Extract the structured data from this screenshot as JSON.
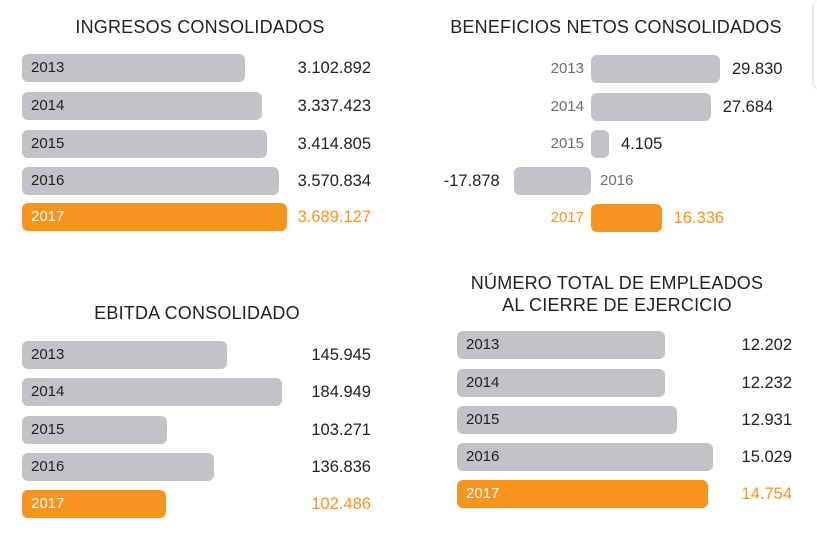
{
  "colors": {
    "bar": "#c2c3c6",
    "highlight": "#f7941d",
    "text": "#231f20"
  },
  "chart_data": [
    {
      "type": "bar",
      "orientation": "horizontal",
      "title": "INGRESOS CONSOLIDADOS",
      "categories": [
        "2013",
        "2014",
        "2015",
        "2016",
        "2017"
      ],
      "values": [
        3102892,
        3337423,
        3414805,
        3570834,
        3689127
      ],
      "labels": [
        "3.102.892",
        "3.337.423",
        "3.414.805",
        "3.570.834",
        "3.689.127"
      ],
      "highlight": "2017"
    },
    {
      "type": "bar",
      "orientation": "horizontal",
      "title": "BENEFICIOS NETOS CONSOLIDADOS",
      "categories": [
        "2013",
        "2014",
        "2015",
        "2016",
        "2017"
      ],
      "values": [
        29830,
        27684,
        4105,
        -17878,
        16336
      ],
      "labels": [
        "29.830",
        "27.684",
        "4.105",
        "-17.878",
        "16.336"
      ],
      "highlight": "2017"
    },
    {
      "type": "bar",
      "orientation": "horizontal",
      "title": "EBITDA CONSOLIDADO",
      "categories": [
        "2013",
        "2014",
        "2015",
        "2016",
        "2017"
      ],
      "values": [
        145945,
        184949,
        103271,
        136836,
        102486
      ],
      "labels": [
        "145.945",
        "184.949",
        "103.271",
        "136.836",
        "102.486"
      ],
      "highlight": "2017"
    },
    {
      "type": "bar",
      "orientation": "horizontal",
      "title": "NÚMERO TOTAL DE EMPLEADOS",
      "title2": "AL CIERRE DE EJERCICIO",
      "categories": [
        "2013",
        "2014",
        "2015",
        "2016",
        "2017"
      ],
      "values": [
        12202,
        12232,
        12931,
        15029,
        14754
      ],
      "labels": [
        "12.202",
        "12.232",
        "12.931",
        "15.029",
        "14.754"
      ],
      "highlight": "2017"
    }
  ]
}
